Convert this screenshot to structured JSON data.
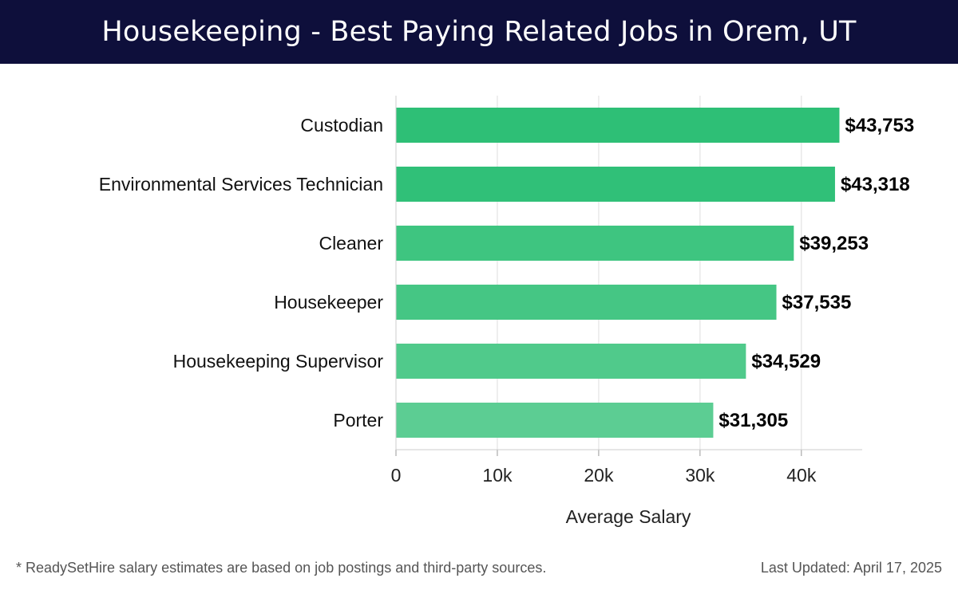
{
  "header": {
    "title": "Housekeeping - Best Paying Related Jobs in Orem, UT"
  },
  "footer": {
    "note": "* ReadySetHire salary estimates are based on job postings and third-party sources.",
    "updated": "Last Updated: April 17, 2025"
  },
  "chart_data": {
    "type": "bar",
    "orientation": "horizontal",
    "categories": [
      "Custodian",
      "Environmental Services Technician",
      "Cleaner",
      "Housekeeper",
      "Housekeeping Supervisor",
      "Porter"
    ],
    "values": [
      43753,
      43318,
      39253,
      37535,
      34529,
      31305
    ],
    "value_labels": [
      "$43,753",
      "$43,318",
      "$39,253",
      "$37,535",
      "$34,529",
      "$31,305"
    ],
    "xlabel": "Average Salary",
    "xlim": [
      0,
      46000
    ],
    "ticks": [
      0,
      10000,
      20000,
      30000,
      40000
    ],
    "tick_labels": [
      "0",
      "10k",
      "20k",
      "30k",
      "40k"
    ],
    "grid": true,
    "colors": [
      "#2ebf76",
      "#30c078",
      "#3ec580",
      "#45c684",
      "#50ca8b",
      "#5ccd93"
    ]
  }
}
